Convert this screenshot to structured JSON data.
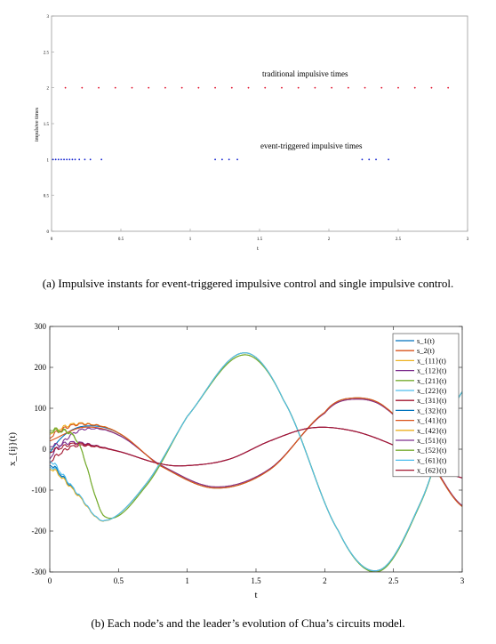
{
  "chart_data": [
    {
      "type": "scatter",
      "xlabel": "t",
      "ylabel": "impulsive times",
      "xlim": [
        0,
        3
      ],
      "ylim": [
        0,
        3
      ],
      "xticks": [
        "0",
        "0.5",
        "1",
        "1.5",
        "2",
        "2.5",
        "3"
      ],
      "yticks": [
        "0",
        "0.5",
        "1",
        "1.5",
        "2",
        "2.5",
        "3"
      ],
      "annotations": [
        "traditional impulsive times",
        "event-triggered impulsive times"
      ],
      "series": [
        {
          "name": "traditional impulsive times",
          "color": "#e0102a",
          "y": 2,
          "x": [
            0.1,
            0.22,
            0.34,
            0.46,
            0.58,
            0.7,
            0.82,
            0.94,
            1.06,
            1.18,
            1.3,
            1.42,
            1.54,
            1.66,
            1.78,
            1.9,
            2.02,
            2.14,
            2.26,
            2.38,
            2.5,
            2.62,
            2.74,
            2.86
          ]
        },
        {
          "name": "event-triggered impulsive times",
          "color": "#1020d0",
          "y": 1,
          "x": [
            0.01,
            0.03,
            0.05,
            0.07,
            0.09,
            0.11,
            0.13,
            0.15,
            0.17,
            0.2,
            0.24,
            0.28,
            0.36,
            1.18,
            1.23,
            1.28,
            1.34,
            2.24,
            2.29,
            2.34,
            2.43
          ]
        }
      ]
    },
    {
      "type": "line",
      "xlabel": "t",
      "ylabel": "x_{ij}(t)",
      "xlim": [
        0,
        3
      ],
      "ylim": [
        -300,
        300
      ],
      "xticks": [
        "0",
        "0.5",
        "1",
        "1.5",
        "2",
        "2.5",
        "3"
      ],
      "yticks": [
        "-300",
        "-200",
        "-100",
        "0",
        "100",
        "200",
        "300"
      ],
      "legend_position": "top-right",
      "series": [
        {
          "name": "s_1(t)",
          "color": "#0072bd",
          "group": "x1",
          "y0": -10
        },
        {
          "name": "s_2(t)",
          "color": "#d95319",
          "group": "x2",
          "y0": 20
        },
        {
          "name": "x_{11}(t)",
          "color": "#edb120",
          "group": "x1",
          "y0": 40,
          "jagged": 1
        },
        {
          "name": "x_{12}(t)",
          "color": "#7e2f8e",
          "group": "x2",
          "y0": -20,
          "jagged": 1
        },
        {
          "name": "x_{21}(t)",
          "color": "#77ac30",
          "group": "x3",
          "y0": 50,
          "jagged": 1
        },
        {
          "name": "x_{22}(t)",
          "color": "#4dbeee",
          "group": "x4",
          "y0": -40,
          "jagged": 1
        },
        {
          "name": "x_{31}(t)",
          "color": "#a2142f",
          "group": "x5",
          "y0": -30,
          "jagged": 1
        },
        {
          "name": "x_{32}(t)",
          "color": "#0072bd",
          "group": "x4",
          "y0": -35,
          "jagged": 1
        },
        {
          "name": "x_{41}(t)",
          "color": "#d95319",
          "group": "x1",
          "y0": 30,
          "jagged": 1
        },
        {
          "name": "x_{42}(t)",
          "color": "#edb120",
          "group": "x4",
          "y0": -45,
          "jagged": 1
        },
        {
          "name": "x_{51}(t)",
          "color": "#7e2f8e",
          "group": "x5",
          "y0": 10,
          "jagged": 1
        },
        {
          "name": "x_{52}(t)",
          "color": "#77ac30",
          "group": "x3",
          "y0": 45,
          "jagged": 1
        },
        {
          "name": "x_{61}(t)",
          "color": "#4dbeee",
          "group": "x4",
          "y0": -25,
          "jagged": 1
        },
        {
          "name": "x_{62}(t)",
          "color": "#a2142f",
          "group": "x5",
          "y0": -5,
          "jagged": 1
        }
      ],
      "base_curves": {
        "x1": {
          "t": [
            0,
            0.25,
            0.5,
            0.8,
            1.2,
            1.6,
            2.0,
            2.2,
            2.45,
            2.75,
            3.0
          ],
          "v": [
            60,
            65,
            40,
            -40,
            -95,
            -50,
            90,
            125,
            100,
            -20,
            -140
          ]
        },
        "x2": {
          "t": [
            0,
            0.25,
            0.5,
            0.8,
            1.2,
            1.6,
            2.0,
            2.2,
            2.45,
            2.75,
            3.0
          ],
          "v": [
            30,
            55,
            35,
            -38,
            -92,
            -48,
            88,
            122,
            98,
            -18,
            -138
          ]
        },
        "x3": {
          "t": [
            0,
            0.2,
            0.4,
            0.7,
            1.0,
            1.4,
            1.7,
            2.1,
            2.4,
            2.7,
            3.0
          ],
          "v": [
            50,
            20,
            -165,
            -90,
            80,
            230,
            120,
            -200,
            -298,
            -130,
            140
          ]
        },
        "x4": {
          "t": [
            0,
            0.2,
            0.4,
            0.7,
            1.0,
            1.4,
            1.7,
            2.1,
            2.4,
            2.7,
            3.0
          ],
          "v": [
            -40,
            -110,
            -175,
            -85,
            80,
            235,
            120,
            -200,
            -295,
            -128,
            140
          ]
        },
        "x5": {
          "t": [
            0,
            0.2,
            0.5,
            0.8,
            1.0,
            1.3,
            1.6,
            1.9,
            2.2,
            2.5,
            2.8,
            3.0
          ],
          "v": [
            5,
            15,
            -5,
            -35,
            -40,
            -25,
            20,
            52,
            45,
            10,
            -40,
            -70
          ]
        }
      }
    }
  ],
  "captions": {
    "a": "(a)  Impulsive instants for event-triggered impulsive control and single impulsive control.",
    "b": "(b)  Each node’s and the leader’s evolution of Chua’s circuits model."
  }
}
